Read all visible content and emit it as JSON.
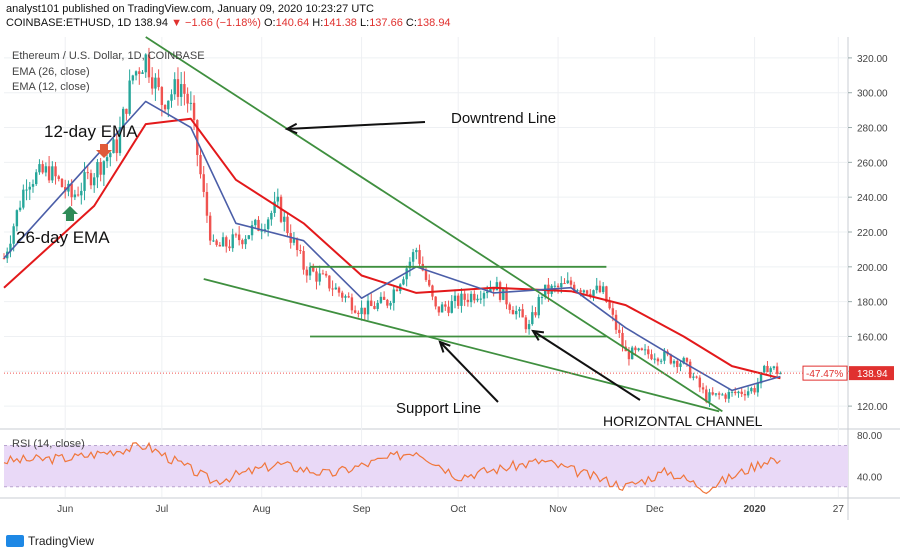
{
  "header": {
    "publish_line": "analyst101 published on TradingView.com, January 09, 2020 10:23:27 UTC",
    "symbol": "COINBASE:ETHUSD, 1D",
    "last": "138.94",
    "change": "▼ −1.66 (−1.18%)",
    "o_label": "O:",
    "o": "140.64",
    "h_label": "H:",
    "h": "141.38",
    "l_label": "L:",
    "l": "137.66",
    "c_label": "C:",
    "c": "138.94"
  },
  "legend": {
    "title": "Ethereum / U.S. Dollar, 1D, COINBASE",
    "ema26": "EMA (26, close)",
    "ema12": "EMA (12, close)",
    "rsi": "RSI (14, close)"
  },
  "annotations": {
    "downtrend": "Downtrend Line",
    "ema12": "12-day EMA",
    "ema26": "26-day EMA",
    "support": "Support Line",
    "channel": "HORIZONTAL CHANNEL"
  },
  "price_tags": {
    "pct": "-47.47%",
    "last": "138.94"
  },
  "footer": {
    "brand": "TradingView"
  },
  "colors": {
    "up": "#26a69a",
    "down": "#ef5350",
    "ema26": "#e3191b",
    "ema12": "#4b5ea8",
    "trend": "#3f8f3f",
    "rsi": "#f0763b",
    "rsi_band": "#e9d9f7",
    "grid": "#eef0f3"
  },
  "chart_data": {
    "type": "candlestick",
    "title": "Ethereum / U.S. Dollar, 1D, COINBASE",
    "x_ticks": [
      "Jun",
      "Jul",
      "Aug",
      "Sep",
      "Oct",
      "Nov",
      "Dec",
      "2020",
      "27"
    ],
    "y_ticks": [
      120,
      140,
      160,
      180,
      200,
      220,
      240,
      260,
      280,
      300,
      320
    ],
    "y_tick_labels": [
      "120.00",
      "140.00",
      "160.00",
      "180.00",
      "200.00",
      "220.00",
      "240.00",
      "260.00",
      "280.00",
      "300.00",
      "320.00"
    ],
    "ylim": [
      108,
      332
    ],
    "close_series": [
      {
        "date": "2019-05-13",
        "close": 205
      },
      {
        "date": "2019-05-20",
        "close": 250
      },
      {
        "date": "2019-05-27",
        "close": 255
      },
      {
        "date": "2019-06-03",
        "close": 240
      },
      {
        "date": "2019-06-10",
        "close": 255
      },
      {
        "date": "2019-06-17",
        "close": 270
      },
      {
        "date": "2019-06-22",
        "close": 310
      },
      {
        "date": "2019-06-26",
        "close": 320
      },
      {
        "date": "2019-07-01",
        "close": 295
      },
      {
        "date": "2019-07-07",
        "close": 305
      },
      {
        "date": "2019-07-10",
        "close": 290
      },
      {
        "date": "2019-07-14",
        "close": 240
      },
      {
        "date": "2019-07-17",
        "close": 210
      },
      {
        "date": "2019-07-24",
        "close": 215
      },
      {
        "date": "2019-08-01",
        "close": 225
      },
      {
        "date": "2019-08-06",
        "close": 235
      },
      {
        "date": "2019-08-14",
        "close": 200
      },
      {
        "date": "2019-08-22",
        "close": 190
      },
      {
        "date": "2019-09-01",
        "close": 175
      },
      {
        "date": "2019-09-09",
        "close": 180
      },
      {
        "date": "2019-09-18",
        "close": 210
      },
      {
        "date": "2019-09-24",
        "close": 175
      },
      {
        "date": "2019-10-01",
        "close": 180
      },
      {
        "date": "2019-10-12",
        "close": 190
      },
      {
        "date": "2019-10-23",
        "close": 165
      },
      {
        "date": "2019-10-27",
        "close": 185
      },
      {
        "date": "2019-11-05",
        "close": 190
      },
      {
        "date": "2019-11-15",
        "close": 185
      },
      {
        "date": "2019-11-22",
        "close": 150
      },
      {
        "date": "2019-12-01",
        "close": 150
      },
      {
        "date": "2019-12-10",
        "close": 145
      },
      {
        "date": "2019-12-17",
        "close": 125
      },
      {
        "date": "2019-12-25",
        "close": 127
      },
      {
        "date": "2020-01-01",
        "close": 130
      },
      {
        "date": "2020-01-05",
        "close": 143
      },
      {
        "date": "2020-01-09",
        "close": 139
      }
    ],
    "ema26_series": [
      {
        "date": "2019-05-13",
        "value": 188
      },
      {
        "date": "2019-06-10",
        "value": 235
      },
      {
        "date": "2019-06-26",
        "value": 282
      },
      {
        "date": "2019-07-10",
        "value": 285
      },
      {
        "date": "2019-07-24",
        "value": 250
      },
      {
        "date": "2019-08-14",
        "value": 225
      },
      {
        "date": "2019-09-01",
        "value": 195
      },
      {
        "date": "2019-09-18",
        "value": 185
      },
      {
        "date": "2019-10-12",
        "value": 188
      },
      {
        "date": "2019-11-05",
        "value": 186
      },
      {
        "date": "2019-11-22",
        "value": 178
      },
      {
        "date": "2019-12-10",
        "value": 160
      },
      {
        "date": "2019-12-25",
        "value": 143
      },
      {
        "date": "2020-01-09",
        "value": 136
      }
    ],
    "ema12_series": [
      {
        "date": "2019-05-13",
        "value": 205
      },
      {
        "date": "2019-06-03",
        "value": 248
      },
      {
        "date": "2019-06-26",
        "value": 295
      },
      {
        "date": "2019-07-10",
        "value": 280
      },
      {
        "date": "2019-07-24",
        "value": 225
      },
      {
        "date": "2019-08-14",
        "value": 215
      },
      {
        "date": "2019-09-01",
        "value": 182
      },
      {
        "date": "2019-09-18",
        "value": 200
      },
      {
        "date": "2019-10-12",
        "value": 185
      },
      {
        "date": "2019-11-05",
        "value": 188
      },
      {
        "date": "2019-11-22",
        "value": 165
      },
      {
        "date": "2019-12-10",
        "value": 145
      },
      {
        "date": "2019-12-25",
        "value": 129
      },
      {
        "date": "2020-01-09",
        "value": 137
      }
    ],
    "trendlines": {
      "downtrend": [
        {
          "date": "2019-06-26",
          "price": 332
        },
        {
          "date": "2019-12-22",
          "price": 117
        }
      ],
      "support": [
        {
          "date": "2019-07-14",
          "price": 193
        },
        {
          "date": "2019-12-21",
          "price": 117
        }
      ],
      "channel_top": [
        {
          "date": "2019-08-16",
          "price": 200
        },
        {
          "date": "2019-11-16",
          "price": 200
        }
      ],
      "channel_bottom": [
        {
          "date": "2019-08-16",
          "price": 160
        },
        {
          "date": "2019-11-16",
          "price": 160
        }
      ]
    },
    "current_price": 138.94,
    "rsi": {
      "name": "RSI (14, close)",
      "y_ticks": [
        40,
        80
      ],
      "y_tick_labels": [
        "40.00",
        "80.00"
      ],
      "ylim": [
        20,
        85
      ],
      "bands": [
        30,
        70
      ],
      "series": [
        {
          "date": "2019-05-13",
          "value": 55
        },
        {
          "date": "2019-06-03",
          "value": 58
        },
        {
          "date": "2019-06-26",
          "value": 70
        },
        {
          "date": "2019-07-17",
          "value": 35
        },
        {
          "date": "2019-08-06",
          "value": 52
        },
        {
          "date": "2019-08-22",
          "value": 42
        },
        {
          "date": "2019-09-18",
          "value": 65
        },
        {
          "date": "2019-10-01",
          "value": 40
        },
        {
          "date": "2019-10-27",
          "value": 55
        },
        {
          "date": "2019-11-22",
          "value": 30
        },
        {
          "date": "2019-12-05",
          "value": 45
        },
        {
          "date": "2019-12-17",
          "value": 28
        },
        {
          "date": "2020-01-01",
          "value": 50
        },
        {
          "date": "2020-01-06",
          "value": 58
        },
        {
          "date": "2020-01-09",
          "value": 52
        }
      ]
    }
  }
}
